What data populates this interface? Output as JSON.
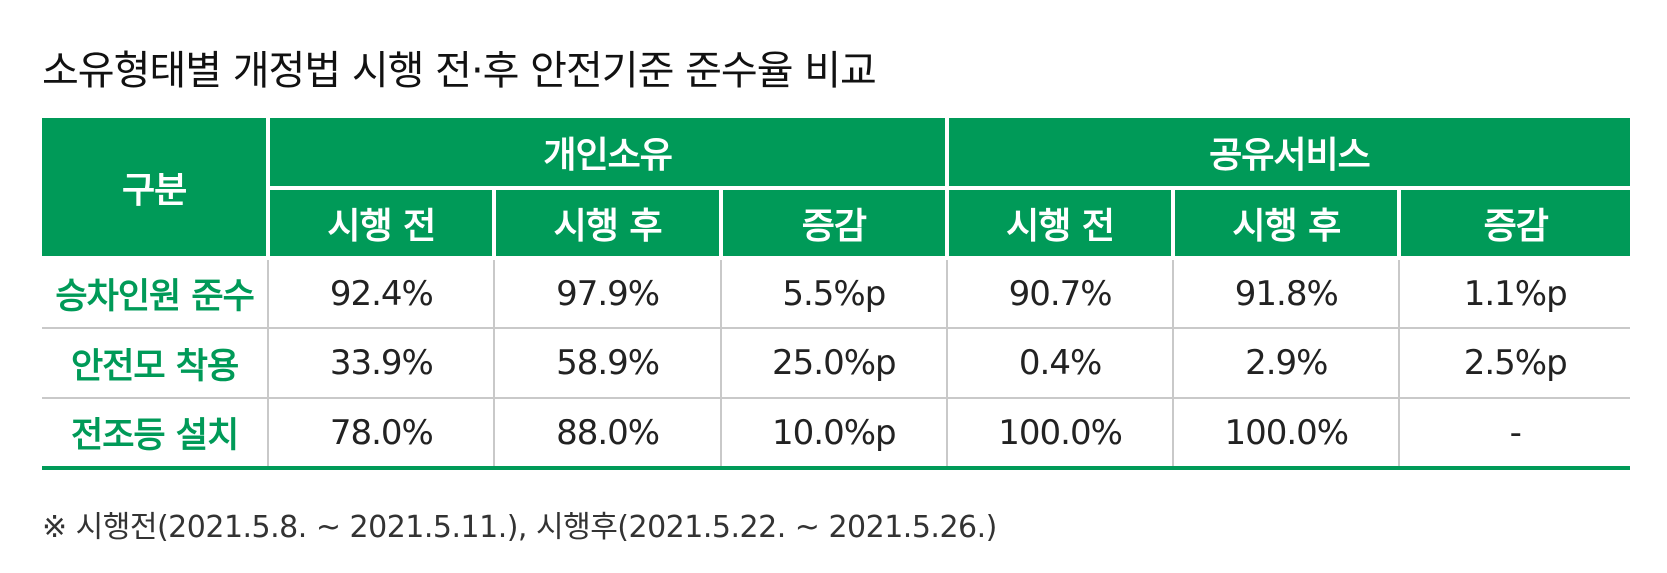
{
  "title": "소유형태별 개정법 시행 전·후 안전기준 준수율 비교",
  "chart_data": {
    "type": "table",
    "corner_header": "구분",
    "groups": [
      {
        "name": "개인소유",
        "columns": [
          "시행 전",
          "시행 후",
          "증감"
        ]
      },
      {
        "name": "공유서비스",
        "columns": [
          "시행 전",
          "시행 후",
          "증감"
        ]
      }
    ],
    "rows": [
      {
        "label": "승차인원 준수",
        "values": [
          "92.4%",
          "97.9%",
          "5.5%p",
          "90.7%",
          "91.8%",
          "1.1%p"
        ]
      },
      {
        "label": "안전모 착용",
        "values": [
          "33.9%",
          "58.9%",
          "25.0%p",
          "0.4%",
          "2.9%",
          "2.5%p"
        ]
      },
      {
        "label": "전조등 설치",
        "values": [
          "78.0%",
          "88.0%",
          "10.0%p",
          "100.0%",
          "100.0%",
          "-"
        ]
      }
    ]
  },
  "note": "※ 시행전(2021.5.8. ~ 2021.5.11.), 시행후(2021.5.22. ~ 2021.5.26.)",
  "colors": {
    "header_bg": "#009a58",
    "row_label": "#009a58",
    "grid": "#c9c9c9"
  }
}
